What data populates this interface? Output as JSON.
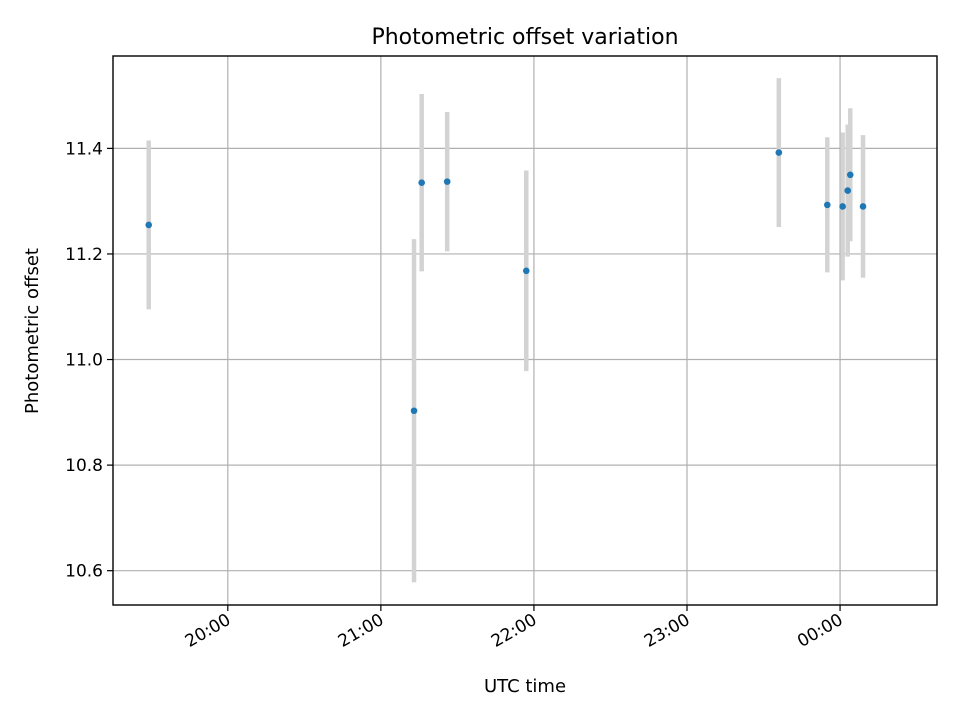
{
  "chart_data": {
    "type": "scatter",
    "title": "Photometric offset variation",
    "xlabel": "UTC time",
    "ylabel": "Photometric offset",
    "grid": true,
    "legend": "none",
    "x_tick_labels": [
      "20:00",
      "21:00",
      "22:00",
      "23:00",
      "00:00"
    ],
    "x_ticks": [
      "20:00",
      "21:00",
      "22:00",
      "23:00",
      "24:00"
    ],
    "xlim": [
      "19:15",
      "24:38"
    ],
    "y_ticks": [
      10.6,
      10.8,
      11.0,
      11.2,
      11.4
    ],
    "y_tick_labels": [
      "10.6",
      "10.8",
      "11.0",
      "11.2",
      "11.4"
    ],
    "ylim": [
      10.535,
      11.575
    ],
    "series": [
      {
        "marker_color": "#1f77b4",
        "errorbar_color": "#d3d3d3",
        "points": [
          {
            "t": "19:29",
            "y": 11.255,
            "err": 0.16
          },
          {
            "t": "21:13",
            "y": 10.903,
            "err": 0.325
          },
          {
            "t": "21:16",
            "y": 11.335,
            "err": 0.168
          },
          {
            "t": "21:26",
            "y": 11.337,
            "err": 0.132
          },
          {
            "t": "21:57",
            "y": 11.168,
            "err": 0.19
          },
          {
            "t": "23:36",
            "y": 11.392,
            "err": 0.141
          },
          {
            "t": "23:55",
            "y": 11.293,
            "err": 0.128
          },
          {
            "t": "24:01",
            "y": 11.29,
            "err": 0.14
          },
          {
            "t": "24:03",
            "y": 11.32,
            "err": 0.125
          },
          {
            "t": "24:04",
            "y": 11.35,
            "err": 0.126
          },
          {
            "t": "24:09",
            "y": 11.29,
            "err": 0.135
          }
        ]
      }
    ]
  }
}
